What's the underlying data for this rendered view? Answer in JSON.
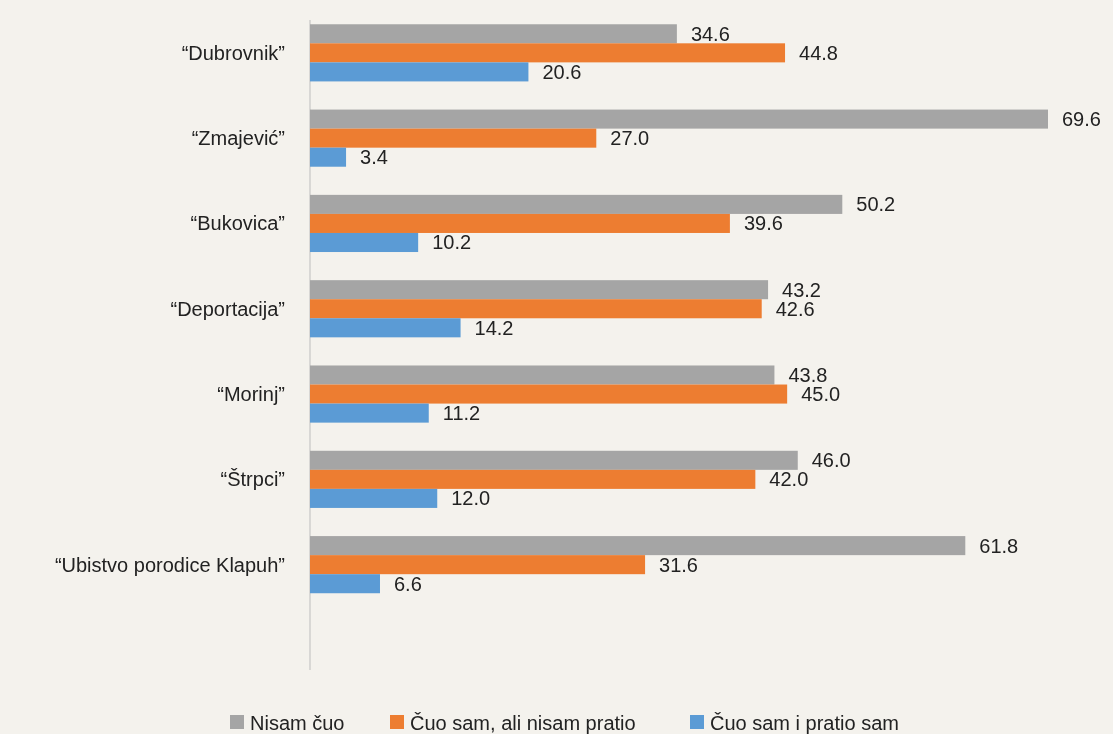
{
  "chart_data": {
    "type": "bar",
    "orientation": "horizontal",
    "legend": "bottom",
    "categories": [
      "“Dubrovnik”",
      "“Zmajević”",
      "“Bukovica”",
      "“Deportacija”",
      "“Morinj”",
      "“Štrpci”",
      "“Ubistvo porodice Klapuh”"
    ],
    "series": [
      {
        "name": "Nisam čuo",
        "color": "#a5a5a5",
        "values": [
          34.6,
          69.6,
          50.2,
          43.2,
          43.8,
          46,
          61.8
        ],
        "value_labels": [
          "34.6",
          "69.6",
          "50.2",
          "43.2",
          "43.8",
          "46.0",
          "61.8"
        ]
      },
      {
        "name": "Čuo sam, ali nisam pratio",
        "color": "#ed7d31",
        "values": [
          44.8,
          27,
          39.6,
          42.6,
          45,
          42,
          31.6
        ],
        "value_labels": [
          "44.8",
          "27.0",
          "39.6",
          "42.6",
          "45.0",
          "42.0",
          "31.6"
        ]
      },
      {
        "name": "Čuo sam i pratio sam",
        "color": "#5b9bd5",
        "values": [
          20.6,
          3.4,
          10.2,
          14.2,
          11.2,
          12,
          6.6
        ],
        "value_labels": [
          "20.6",
          "3.4",
          "10.2",
          "14.2",
          "11.2",
          "12.0",
          "6.6"
        ]
      }
    ]
  }
}
